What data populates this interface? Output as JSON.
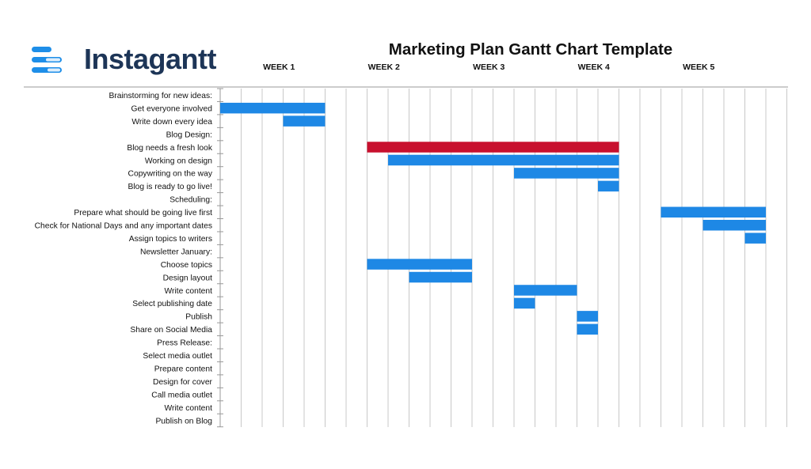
{
  "brand": {
    "name": "Instagantt",
    "colors": {
      "logo_dark": "#1d3557",
      "logo_blue": "#1e8ee8"
    }
  },
  "chart_data": {
    "type": "bar",
    "subtype": "gantt",
    "title": "Marketing Plan Gantt Chart Template",
    "week_labels": [
      "WEEK 1",
      "WEEK 2",
      "WEEK 3",
      "WEEK 4",
      "WEEK 5"
    ],
    "days_per_week": 5,
    "total_days": 27,
    "grid": true,
    "colors": {
      "task": "#1e88e5",
      "critical": "#c8102e",
      "grid": "#c8c8c8"
    },
    "tasks": [
      {
        "label": "Brainstorming for new ideas:"
      },
      {
        "label": "Get everyone involved",
        "start": 0,
        "end": 5
      },
      {
        "label": "Write down every idea",
        "start": 3,
        "end": 5
      },
      {
        "label": "Blog Design:"
      },
      {
        "label": "Blog needs a fresh look",
        "start": 7,
        "end": 19,
        "critical": true
      },
      {
        "label": "Working on design",
        "start": 8,
        "end": 19
      },
      {
        "label": "Copywriting on the way",
        "start": 14,
        "end": 19
      },
      {
        "label": "Blog is ready to go live!",
        "start": 18,
        "end": 19
      },
      {
        "label": "Scheduling:"
      },
      {
        "label": "Prepare what should be going live first",
        "start": 21,
        "end": 26
      },
      {
        "label": "Check for National Days and any important dates",
        "start": 23,
        "end": 26
      },
      {
        "label": "Assign topics to writers",
        "start": 25,
        "end": 26
      },
      {
        "label": "Newsletter January:"
      },
      {
        "label": "Choose topics",
        "start": 7,
        "end": 12
      },
      {
        "label": "Design layout",
        "start": 9,
        "end": 12
      },
      {
        "label": "Write content",
        "start": 14,
        "end": 17
      },
      {
        "label": "Select publishing date",
        "start": 14,
        "end": 15
      },
      {
        "label": "Publish",
        "start": 17,
        "end": 18
      },
      {
        "label": "Share on Social Media",
        "start": 17,
        "end": 18
      },
      {
        "label": "Press Release:"
      },
      {
        "label": "Select media outlet"
      },
      {
        "label": "Prepare content"
      },
      {
        "label": "Design for cover"
      },
      {
        "label": "Call media outlet"
      },
      {
        "label": "Write content"
      },
      {
        "label": "Publish on Blog"
      }
    ]
  }
}
